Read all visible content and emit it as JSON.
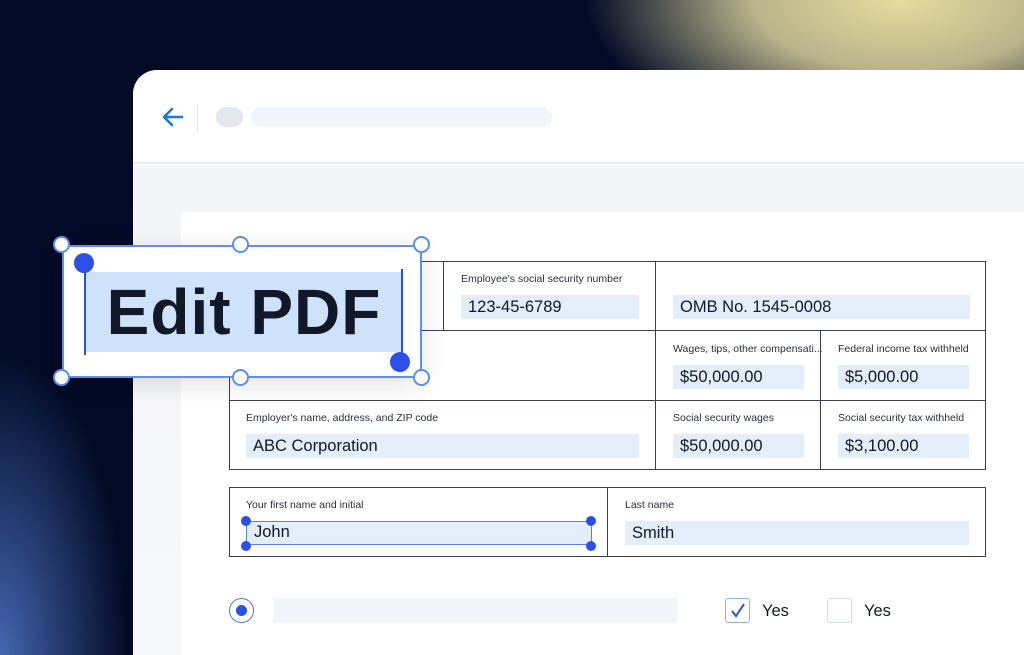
{
  "toolbar": {
    "back_icon": "arrow-left-icon"
  },
  "form": {
    "ssn": {
      "label": "Employee's social security number",
      "value": "123-45-6789"
    },
    "omb": {
      "value": "OMB No. 1545-0008"
    },
    "wages": {
      "label": "Wages, tips, other compensati...",
      "value": "$50,000.00"
    },
    "fed_tax": {
      "label": "Federal income tax withheld",
      "value": "$5,000.00"
    },
    "employer": {
      "label": "Employer's name, address, and ZIP code",
      "value": "ABC Corporation"
    },
    "ss_wages": {
      "label": "Social security wages",
      "value": "$50,000.00"
    },
    "ss_tax": {
      "label": "Social security tax withheld",
      "value": "$3,100.00"
    },
    "first_name": {
      "label": "Your first name and initial",
      "value": "John"
    },
    "last_name": {
      "label": "Last name",
      "value": "Smith"
    },
    "radio_selected": true,
    "checkbox1": {
      "label": "Yes",
      "checked": true
    },
    "checkbox2": {
      "label": "Yes",
      "checked": false
    }
  },
  "edit_box": {
    "text": "Edit PDF"
  },
  "colors": {
    "accent": "#2b50ea",
    "selection": "#5b8ff0",
    "field_bg": "#e4edfa",
    "highlight": "#cfe2fb",
    "background": "#020a25"
  }
}
